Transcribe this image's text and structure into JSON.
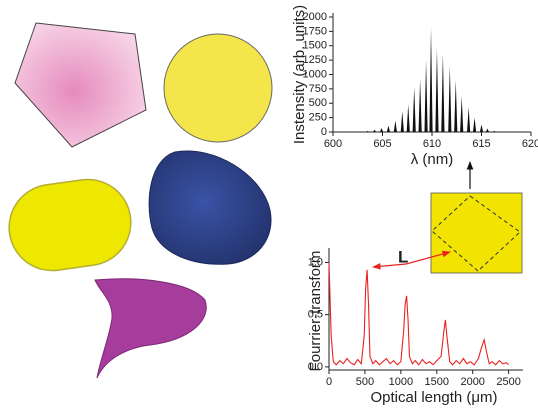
{
  "chart_data": [
    {
      "type": "stem",
      "x_label": "λ (nm)",
      "y_label": "Instensity (arb. units)",
      "color": "#111111",
      "xlim": [
        600,
        620
      ],
      "ylim": [
        0,
        2000
      ],
      "xticks": [
        600,
        605,
        610,
        615,
        620
      ],
      "yticks": [
        0,
        250,
        500,
        750,
        1000,
        1250,
        1500,
        1750,
        2000
      ],
      "x": [
        603.5,
        604.2,
        604.9,
        605.6,
        606.3,
        607.0,
        607.6,
        608.2,
        608.8,
        609.4,
        609.9,
        610.5,
        611.1,
        611.8,
        612.4,
        613.0,
        613.7,
        614.3,
        615.0,
        615.6,
        616.3
      ],
      "values": [
        20,
        40,
        70,
        110,
        200,
        360,
        480,
        780,
        920,
        1250,
        1820,
        1450,
        1360,
        1150,
        900,
        620,
        430,
        250,
        130,
        60,
        20
      ]
    },
    {
      "type": "line",
      "x_label": "Optical length (μm)",
      "y_label": "Fourrier-transform",
      "annotation": "L",
      "color": "#e8231f",
      "xlim": [
        0,
        2700
      ],
      "ylim": [
        -0.03,
        1.1
      ],
      "xticks": [
        0,
        500,
        1000,
        1500,
        2000,
        2500
      ],
      "yticks": [
        {
          "value": 0,
          "label": "0.0"
        },
        {
          "value": 0.5,
          "label": "0.5"
        },
        {
          "value": 1,
          "label": "1.0"
        }
      ],
      "x": [
        0,
        30,
        60,
        100,
        150,
        200,
        250,
        300,
        350,
        400,
        450,
        490,
        510,
        530,
        550,
        570,
        610,
        650,
        700,
        750,
        800,
        850,
        900,
        950,
        1000,
        1040,
        1060,
        1080,
        1100,
        1120,
        1160,
        1200,
        1250,
        1300,
        1350,
        1400,
        1450,
        1500,
        1560,
        1600,
        1620,
        1640,
        1680,
        1720,
        1770,
        1820,
        1870,
        1920,
        1970,
        2020,
        2080,
        2120,
        2160,
        2190,
        2230,
        2270,
        2320,
        2370,
        2420,
        2470,
        2500
      ],
      "values": [
        1.0,
        0.3,
        0.05,
        0.02,
        0.06,
        0.03,
        0.08,
        0.04,
        0.02,
        0.07,
        0.03,
        0.3,
        0.75,
        0.93,
        0.6,
        0.1,
        0.03,
        0.06,
        0.02,
        0.05,
        0.08,
        0.03,
        0.06,
        0.02,
        0.05,
        0.35,
        0.6,
        0.68,
        0.45,
        0.1,
        0.03,
        0.06,
        0.02,
        0.07,
        0.03,
        0.05,
        0.02,
        0.06,
        0.1,
        0.35,
        0.45,
        0.3,
        0.05,
        0.02,
        0.06,
        0.03,
        0.08,
        0.03,
        0.05,
        0.02,
        0.08,
        0.18,
        0.26,
        0.15,
        0.03,
        0.05,
        0.02,
        0.06,
        0.03,
        0.04,
        0.02
      ]
    }
  ]
}
